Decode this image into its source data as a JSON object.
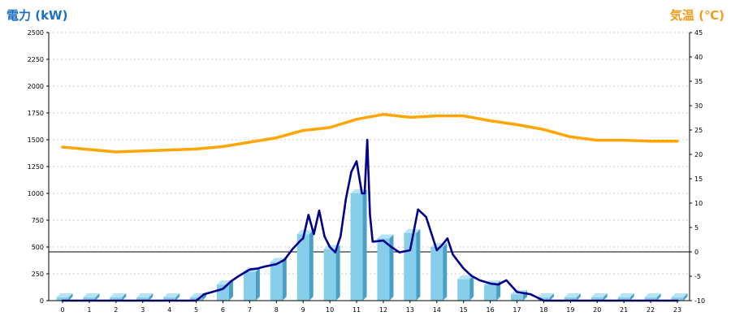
{
  "chart_data": {
    "type": "bar",
    "categories": [
      "0",
      "1",
      "2",
      "3",
      "4",
      "5",
      "6",
      "7",
      "8",
      "9",
      "10",
      "11",
      "12",
      "13",
      "14",
      "15",
      "16",
      "17",
      "18",
      "19",
      "20",
      "21",
      "22",
      "23"
    ],
    "left_axis": {
      "label": "電力 (kW)",
      "ylim": [
        0,
        2500
      ],
      "ticks": [
        "0",
        "250",
        "500",
        "750",
        "1000",
        "1250",
        "1500",
        "1750",
        "2000",
        "2250",
        "2500"
      ]
    },
    "right_axis": {
      "label": "気温 (℃)",
      "ylim": [
        -10,
        45
      ],
      "ticks": [
        "-10",
        "-5",
        "0",
        "5",
        "10",
        "15",
        "20",
        "25",
        "30",
        "35",
        "40",
        "45"
      ]
    },
    "grid": true,
    "series": [
      {
        "kind": "bar",
        "axis": "left",
        "color": "#87ceeb",
        "values": [
          30,
          30,
          30,
          30,
          30,
          30,
          150,
          270,
          360,
          620,
          480,
          1000,
          580,
          630,
          500,
          200,
          150,
          60,
          30,
          30,
          30,
          30,
          30,
          30
        ]
      },
      {
        "kind": "line",
        "axis": "right",
        "color": "#ffa500",
        "x": [
          0,
          1,
          2,
          3,
          4,
          5,
          6,
          7,
          8,
          9,
          10,
          11,
          12,
          13,
          14,
          15,
          16,
          17,
          18,
          19,
          20,
          21,
          22,
          23
        ],
        "values": [
          21.5,
          21,
          20.5,
          20.7,
          20.9,
          21.1,
          21.6,
          22.5,
          23.4,
          24.9,
          25.5,
          27.2,
          28.2,
          27.6,
          27.9,
          27.9,
          26.9,
          26.1,
          25.1,
          23.6,
          22.9,
          22.9,
          22.7,
          22.7
        ]
      },
      {
        "kind": "line",
        "axis": "left",
        "color": "#00008b",
        "x": [
          0,
          1,
          2,
          3,
          4,
          5,
          5.3,
          5.6,
          6,
          6.3,
          6.6,
          7,
          7.3,
          7.6,
          8,
          8.3,
          8.6,
          8.9,
          9,
          9.2,
          9.4,
          9.6,
          9.8,
          10,
          10.2,
          10.4,
          10.6,
          10.8,
          11,
          11.2,
          11.3,
          11.4,
          11.5,
          11.6,
          12,
          12.3,
          12.6,
          13,
          13.3,
          13.6,
          14,
          14.2,
          14.4,
          14.6,
          15,
          15.3,
          15.6,
          16,
          16.3,
          16.6,
          17,
          17.5,
          18,
          19,
          20,
          21,
          22,
          23
        ],
        "values": [
          0,
          0,
          0,
          0,
          0,
          0,
          60,
          80,
          110,
          180,
          230,
          290,
          300,
          320,
          340,
          380,
          480,
          560,
          580,
          800,
          620,
          840,
          600,
          500,
          450,
          600,
          950,
          1200,
          1300,
          1000,
          1000,
          1500,
          800,
          550,
          560,
          500,
          450,
          470,
          850,
          780,
          470,
          520,
          580,
          430,
          300,
          230,
          190,
          160,
          150,
          190,
          80,
          60,
          0,
          0,
          0,
          0,
          0,
          0
        ]
      }
    ]
  }
}
